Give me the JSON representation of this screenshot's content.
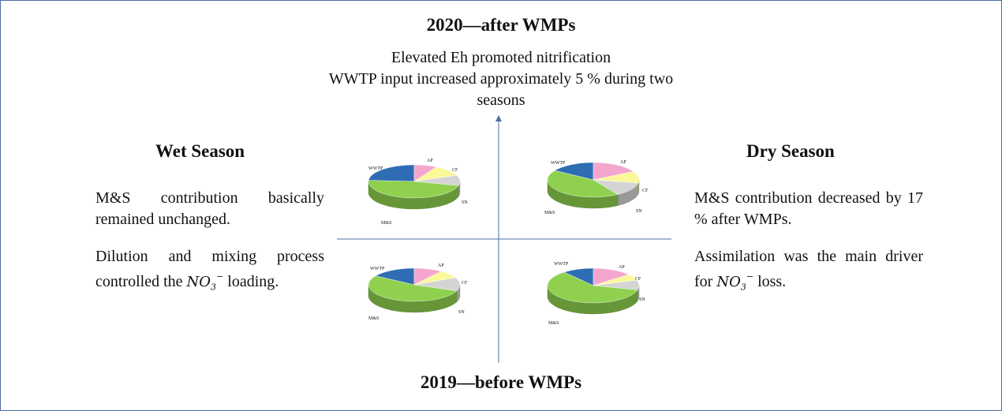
{
  "titles": {
    "top": "2020—after WMPs",
    "bottom": "2019—before WMPs"
  },
  "top_notes": {
    "line1": "Elevated Eh  promoted nitrification",
    "line2": "WWTP input increased approximately 5 % during two seasons"
  },
  "wet": {
    "heading": "Wet Season",
    "para1": "M&S contribution basically remained unchanged.",
    "para2_prefix": "Dilution and mixing process controlled the ",
    "para2_suffix": " loading."
  },
  "dry": {
    "heading": "Dry Season",
    "para1": "M&S contribution decreased by 17 % after WMPs.",
    "para2_prefix": "Assimilation was the main driver for ",
    "para2_suffix": " loss."
  },
  "chem": {
    "base": "NO",
    "sub": "3",
    "sup": "−"
  },
  "colors": {
    "WWTP": "#2e6db4",
    "AP": "#f4a6cf",
    "CF": "#fbf89a",
    "SN": "#d4d4d4",
    "M&S": "#8fd14f",
    "axis": "#4a6fa5"
  },
  "chart_data": {
    "type": "pie",
    "labels": [
      "WWTP",
      "AP",
      "CF",
      "SN",
      "M&S"
    ],
    "charts": [
      {
        "name": "Wet 2020",
        "values": [
          24,
          8,
          11,
          10,
          47
        ]
      },
      {
        "name": "Dry 2020",
        "values": [
          16,
          17,
          11,
          13,
          43
        ]
      },
      {
        "name": "Wet 2019",
        "values": [
          16,
          10,
          8,
          13,
          53
        ]
      },
      {
        "name": "Dry 2019",
        "values": [
          11,
          14,
          6,
          9,
          60
        ]
      }
    ]
  }
}
